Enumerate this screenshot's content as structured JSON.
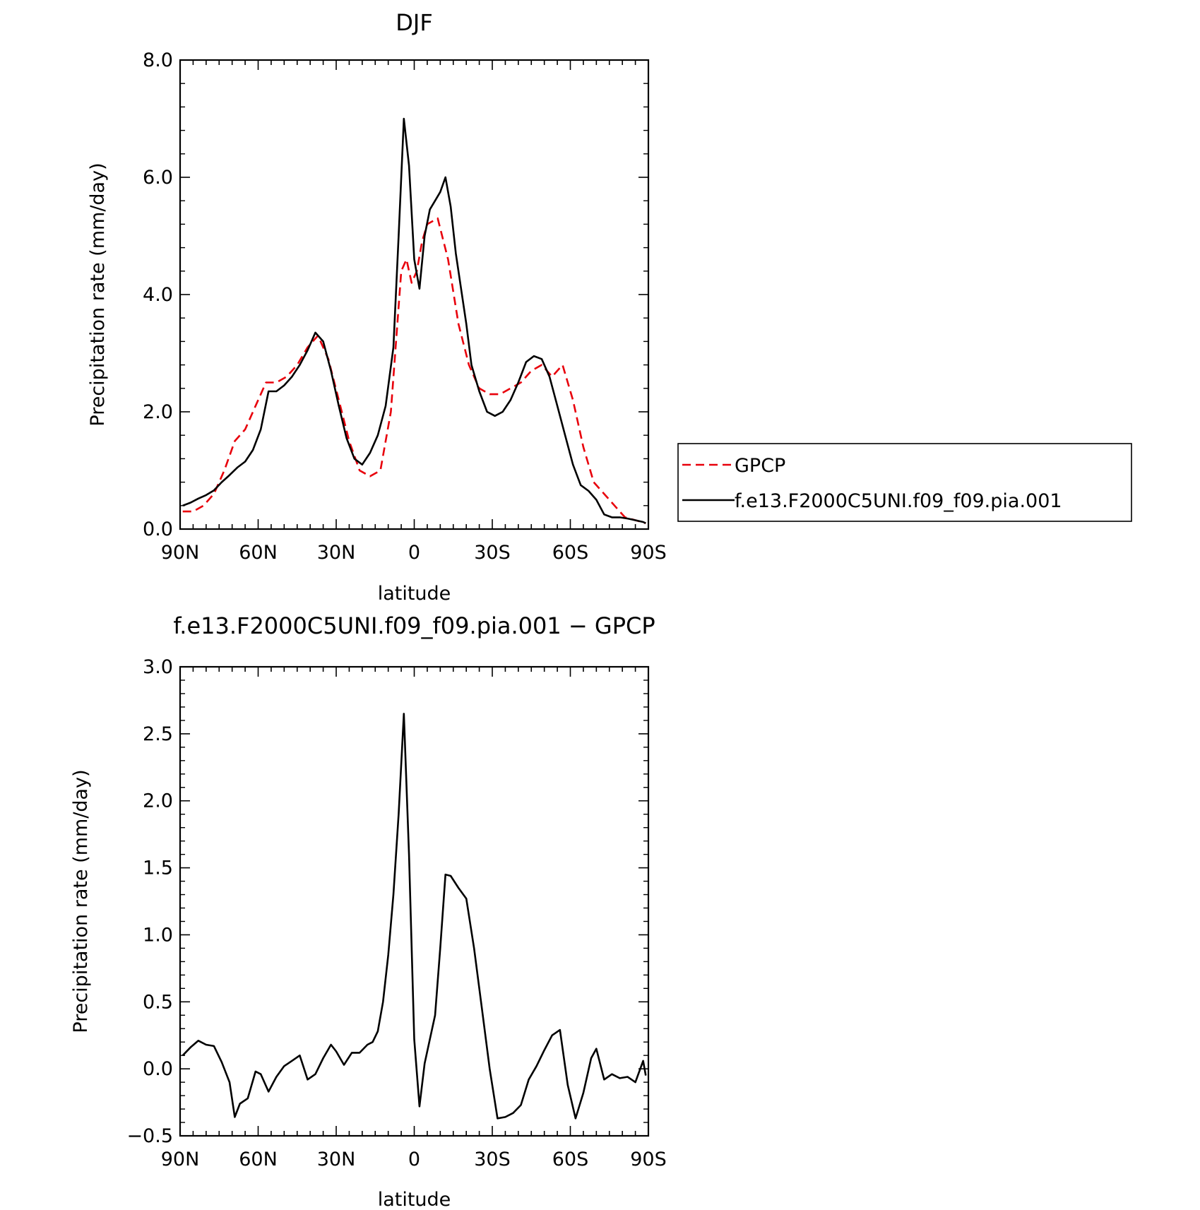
{
  "chart_data": [
    {
      "type": "line",
      "title": "DJF",
      "xlabel": "latitude",
      "ylabel": "Precipitation rate (mm/day)",
      "xlim": [
        -90,
        90
      ],
      "ylim": [
        0,
        8
      ],
      "xticks": [
        -90,
        -60,
        -30,
        0,
        30,
        60,
        90
      ],
      "xtick_labels": [
        "90N",
        "60N",
        "30N",
        "0",
        "30S",
        "60S",
        "90S"
      ],
      "yticks": [
        0,
        2,
        4,
        6,
        8
      ],
      "ytick_labels": [
        "0.0",
        "2.0",
        "4.0",
        "6.0",
        "8.0"
      ],
      "legend": {
        "position": "right"
      },
      "series": [
        {
          "name": "GPCP",
          "color": "#e8000b",
          "style": "dashed",
          "x": [
            -89,
            -85,
            -81,
            -77,
            -73,
            -69,
            -65,
            -61,
            -57,
            -53,
            -49,
            -45,
            -41,
            -37,
            -33,
            -29,
            -25,
            -21,
            -17,
            -13,
            -9,
            -5,
            -3,
            -1,
            1,
            3,
            5,
            9,
            13,
            17,
            21,
            25,
            29,
            33,
            37,
            41,
            45,
            49,
            53,
            57,
            61,
            65,
            69,
            73,
            77,
            81,
            85,
            89
          ],
          "values": [
            0.3,
            0.3,
            0.4,
            0.6,
            1.0,
            1.5,
            1.7,
            2.1,
            2.5,
            2.5,
            2.6,
            2.8,
            3.1,
            3.3,
            2.9,
            2.2,
            1.5,
            1.0,
            0.9,
            1.0,
            2.0,
            4.4,
            4.6,
            4.2,
            4.4,
            4.9,
            5.2,
            5.3,
            4.6,
            3.5,
            2.8,
            2.4,
            2.3,
            2.3,
            2.4,
            2.5,
            2.7,
            2.8,
            2.6,
            2.8,
            2.2,
            1.4,
            0.8,
            0.6,
            0.4,
            0.2,
            0.15,
            0.1
          ]
        },
        {
          "name": "f.e13.F2000C5UNI.f09_f09.pia.001",
          "color": "#000000",
          "style": "solid",
          "x": [
            -89,
            -86,
            -83,
            -80,
            -77,
            -74,
            -71,
            -68,
            -65,
            -62,
            -59,
            -56,
            -53,
            -50,
            -47,
            -44,
            -41,
            -38,
            -35,
            -32,
            -29,
            -26,
            -23,
            -20,
            -17,
            -14,
            -11,
            -8,
            -6,
            -4,
            -2,
            0,
            2,
            4,
            6,
            8,
            10,
            12,
            14,
            16,
            18,
            20,
            22,
            25,
            28,
            31,
            34,
            37,
            40,
            43,
            46,
            49,
            52,
            55,
            58,
            61,
            64,
            67,
            70,
            73,
            76,
            79,
            82,
            85,
            88,
            89
          ],
          "values": [
            0.4,
            0.45,
            0.52,
            0.58,
            0.66,
            0.8,
            0.92,
            1.05,
            1.15,
            1.35,
            1.7,
            2.35,
            2.35,
            2.45,
            2.6,
            2.8,
            3.05,
            3.35,
            3.2,
            2.7,
            2.1,
            1.55,
            1.2,
            1.1,
            1.3,
            1.6,
            2.1,
            3.1,
            5.0,
            7.0,
            6.2,
            4.6,
            4.1,
            5.0,
            5.45,
            5.6,
            5.75,
            6.0,
            5.5,
            4.7,
            4.1,
            3.5,
            2.8,
            2.35,
            2.0,
            1.93,
            2.0,
            2.2,
            2.5,
            2.85,
            2.95,
            2.9,
            2.6,
            2.1,
            1.6,
            1.1,
            0.75,
            0.65,
            0.5,
            0.25,
            0.2,
            0.2,
            0.18,
            0.15,
            0.12,
            0.1
          ]
        }
      ]
    },
    {
      "type": "line",
      "title": "f.e13.F2000C5UNI.f09_f09.pia.001 − GPCP",
      "xlabel": "latitude",
      "ylabel": "Precipitation rate (mm/day)",
      "xlim": [
        -90,
        90
      ],
      "ylim": [
        -0.5,
        3.0
      ],
      "xticks": [
        -90,
        -60,
        -30,
        0,
        30,
        60,
        90
      ],
      "xtick_labels": [
        "90N",
        "60N",
        "30N",
        "0",
        "30S",
        "60S",
        "90S"
      ],
      "yticks": [
        -0.5,
        0,
        0.5,
        1.0,
        1.5,
        2.0,
        2.5,
        3.0
      ],
      "ytick_labels": [
        "−0.5",
        "0.0",
        "0.5",
        "1.0",
        "1.5",
        "2.0",
        "2.5",
        "3.0"
      ],
      "series": [
        {
          "color": "#000000",
          "style": "solid",
          "x": [
            -89,
            -86,
            -83,
            -80,
            -77,
            -74,
            -71,
            -69,
            -67,
            -64,
            -61,
            -59,
            -56,
            -53,
            -50,
            -47,
            -44,
            -41,
            -38,
            -35,
            -32,
            -30,
            -27,
            -24,
            -21,
            -18,
            -16,
            -14,
            -12,
            -10,
            -8,
            -6,
            -4,
            -2,
            0,
            2,
            4,
            6,
            8,
            10,
            12,
            14,
            17,
            20,
            23,
            26,
            29,
            32,
            35,
            38,
            41,
            44,
            47,
            50,
            53,
            56,
            59,
            62,
            65,
            68,
            70,
            73,
            76,
            79,
            82,
            85,
            88,
            89
          ],
          "values": [
            0.1,
            0.16,
            0.21,
            0.18,
            0.17,
            0.05,
            -0.1,
            -0.36,
            -0.26,
            -0.22,
            -0.02,
            -0.04,
            -0.17,
            -0.06,
            0.02,
            0.06,
            0.1,
            -0.08,
            -0.04,
            0.08,
            0.18,
            0.13,
            0.03,
            0.12,
            0.12,
            0.18,
            0.2,
            0.28,
            0.5,
            0.85,
            1.3,
            1.9,
            2.65,
            1.6,
            0.22,
            -0.28,
            0.04,
            0.22,
            0.4,
            0.9,
            1.45,
            1.44,
            1.35,
            1.27,
            0.9,
            0.45,
            0.0,
            -0.37,
            -0.36,
            -0.33,
            -0.27,
            -0.08,
            0.02,
            0.14,
            0.25,
            0.29,
            -0.12,
            -0.37,
            -0.18,
            0.08,
            0.15,
            -0.08,
            -0.04,
            -0.07,
            -0.06,
            -0.1,
            0.06,
            -0.05
          ]
        }
      ]
    }
  ]
}
